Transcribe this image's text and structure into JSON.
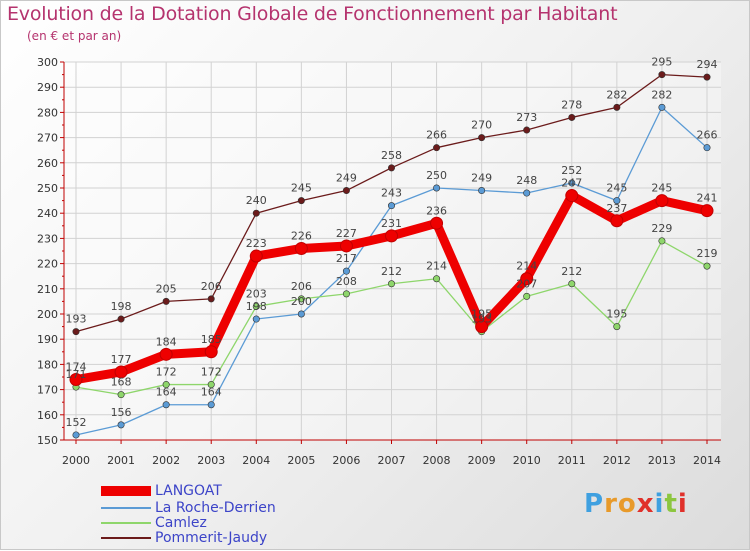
{
  "chart_data": {
    "type": "line",
    "title": "Evolution de la Dotation Globale de Fonctionnement par Habitant",
    "subtitle": "(en € et par an)",
    "x": [
      "2000",
      "2001",
      "2002",
      "2003",
      "2004",
      "2005",
      "2006",
      "2007",
      "2008",
      "2009",
      "2010",
      "2011",
      "2012",
      "2013",
      "2014"
    ],
    "ylim": [
      150,
      300
    ],
    "yticks": [
      150,
      160,
      170,
      180,
      190,
      200,
      210,
      220,
      230,
      240,
      250,
      260,
      270,
      280,
      290,
      300
    ],
    "grid": true,
    "legend_position": "bottom-left",
    "series": [
      {
        "name": "Pommerit-Jaudy",
        "color": "#6b1b1b",
        "values": [
          193,
          198,
          205,
          206,
          240,
          245,
          249,
          258,
          266,
          270,
          273,
          278,
          282,
          295,
          294
        ],
        "labels": [
          "193",
          "198",
          "205",
          "206",
          "240",
          "245",
          "249",
          "258",
          "266",
          "270",
          "273",
          "278",
          "282",
          "295",
          "294"
        ]
      },
      {
        "name": "La Roche-Derrien",
        "color": "#5b9bd5",
        "values": [
          152,
          156,
          164,
          164,
          198,
          200,
          217,
          243,
          250,
          249,
          248,
          252,
          245,
          282,
          266
        ],
        "labels": [
          "152",
          "156",
          "164",
          "164",
          "198",
          "200",
          "217",
          "243",
          "250",
          "249",
          "248",
          "252",
          "245",
          "282",
          "266"
        ]
      },
      {
        "name": "Camlez",
        "color": "#8ed66b",
        "values": [
          171,
          168,
          172,
          172,
          203,
          206,
          208,
          212,
          214,
          193,
          207,
          212,
          195,
          229,
          219
        ],
        "labels": [
          "171",
          "168",
          "172",
          "172",
          "203",
          "206",
          "208",
          "212",
          "214",
          "193",
          "207",
          "212",
          "195",
          "229",
          "219"
        ]
      },
      {
        "name": "LANGOAT",
        "color": "#ee0000",
        "values": [
          174,
          177,
          184,
          185,
          223,
          226,
          227,
          231,
          236,
          195,
          214,
          247,
          237,
          245,
          241
        ],
        "labels": [
          "174",
          "177",
          "184",
          "185",
          "223",
          "226",
          "227",
          "231",
          "236",
          "195",
          "214",
          "247",
          "237",
          "245",
          "241"
        ]
      }
    ]
  },
  "legend": [
    {
      "name": "LANGOAT",
      "color": "#ee0000"
    },
    {
      "name": "La Roche-Derrien",
      "color": "#5b9bd5"
    },
    {
      "name": "Camlez",
      "color": "#8ed66b"
    },
    {
      "name": "Pommerit-Jaudy",
      "color": "#6b1b1b"
    }
  ],
  "brand": {
    "letters": [
      "P",
      "r",
      "o",
      "x",
      "i",
      "t",
      "i"
    ],
    "colors": [
      "#3fa0e0",
      "#e89a2a",
      "#e89a2a",
      "#e0302a",
      "#3fa0e0",
      "#8cc63f",
      "#e0302a"
    ]
  }
}
